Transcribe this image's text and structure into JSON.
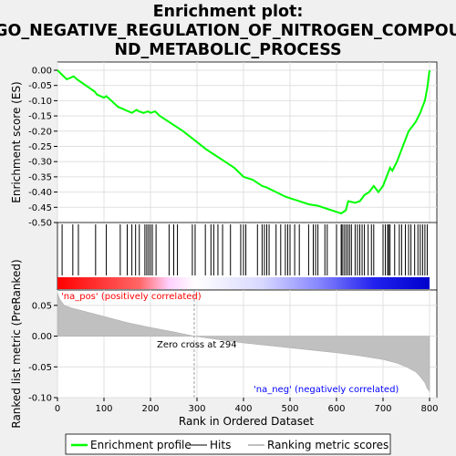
{
  "chart_data": [
    {
      "type": "line",
      "title_lines": [
        "Enrichment plot:",
        "GO_NEGATIVE_REGULATION_OF_NITROGEN_COMPOU",
        "ND_METABOLIC_PROCESS"
      ],
      "ylabel": "Enrichment score (ES)",
      "xlim": [
        0,
        800
      ],
      "ylim": [
        -0.5,
        0.0
      ],
      "yticks": [
        "0.00",
        "-0.05",
        "-0.10",
        "-0.15",
        "-0.20",
        "-0.25",
        "-0.30",
        "-0.35",
        "-0.40",
        "-0.45",
        "-0.50"
      ],
      "grid": true,
      "color": "#00ff00",
      "series": [
        {
          "name": "Enrichment profile",
          "x": [
            0,
            20,
            35,
            42,
            80,
            85,
            100,
            105,
            130,
            160,
            170,
            175,
            185,
            195,
            200,
            210,
            220,
            250,
            270,
            295,
            320,
            340,
            360,
            380,
            400,
            420,
            440,
            450,
            470,
            490,
            500,
            520,
            540,
            560,
            570,
            580,
            600,
            610,
            620,
            625,
            640,
            650,
            660,
            670,
            680,
            690,
            700,
            710,
            715,
            720,
            730,
            740,
            750,
            755,
            770,
            780,
            785,
            790,
            795,
            800
          ],
          "values": [
            -0.0,
            -0.03,
            -0.02,
            -0.03,
            -0.07,
            -0.08,
            -0.09,
            -0.085,
            -0.12,
            -0.14,
            -0.13,
            -0.135,
            -0.14,
            -0.135,
            -0.14,
            -0.135,
            -0.15,
            -0.18,
            -0.2,
            -0.23,
            -0.26,
            -0.28,
            -0.3,
            -0.32,
            -0.35,
            -0.36,
            -0.38,
            -0.385,
            -0.4,
            -0.415,
            -0.42,
            -0.43,
            -0.44,
            -0.445,
            -0.45,
            -0.455,
            -0.465,
            -0.47,
            -0.46,
            -0.43,
            -0.435,
            -0.43,
            -0.41,
            -0.4,
            -0.38,
            -0.4,
            -0.38,
            -0.34,
            -0.32,
            -0.33,
            -0.3,
            -0.26,
            -0.22,
            -0.2,
            -0.17,
            -0.14,
            -0.12,
            -0.1,
            -0.06,
            0.0
          ]
        }
      ]
    },
    {
      "type": "scatter",
      "name": "Hits",
      "x": [
        10,
        33,
        45,
        82,
        105,
        135,
        150,
        160,
        168,
        176,
        188,
        192,
        196,
        200,
        204,
        212,
        240,
        250,
        258,
        290,
        296,
        318,
        330,
        336,
        345,
        355,
        372,
        394,
        400,
        405,
        430,
        440,
        445,
        450,
        455,
        470,
        480,
        490,
        495,
        500,
        510,
        520,
        540,
        550,
        555,
        560,
        575,
        580,
        600,
        610,
        612,
        616,
        620,
        624,
        628,
        632,
        640,
        645,
        650,
        655,
        660,
        668,
        675,
        680,
        700,
        705,
        710,
        712,
        715,
        725,
        735,
        740,
        748,
        755,
        760,
        768,
        775,
        780,
        785,
        790,
        795
      ]
    },
    {
      "type": "area",
      "ylabel": "Ranked list metric (PreRanked)",
      "xlabel": "Rank in Ordered Dataset",
      "xlim": [
        0,
        800
      ],
      "ylim": [
        -0.1,
        0.075
      ],
      "yticks": [
        "0.05",
        "0.00",
        "-0.05",
        "-0.10"
      ],
      "xticks": [
        "0",
        "100",
        "200",
        "300",
        "400",
        "500",
        "600",
        "700",
        "800"
      ],
      "zero_cross": 294,
      "x": [
        0,
        5,
        15,
        30,
        50,
        80,
        100,
        150,
        200,
        250,
        294,
        350,
        400,
        450,
        500,
        550,
        600,
        650,
        700,
        730,
        750,
        770,
        780,
        790,
        795,
        800
      ],
      "values": [
        0.07,
        0.06,
        0.05,
        0.046,
        0.042,
        0.036,
        0.032,
        0.022,
        0.014,
        0.007,
        0.0,
        -0.006,
        -0.011,
        -0.015,
        -0.019,
        -0.023,
        -0.027,
        -0.032,
        -0.038,
        -0.044,
        -0.05,
        -0.058,
        -0.066,
        -0.076,
        -0.085,
        -0.09
      ]
    }
  ],
  "labels": {
    "pos": "'na_pos' (positively correlated)",
    "neg": "'na_neg' (negatively correlated)",
    "zero": "Zero cross at 294"
  },
  "legend": {
    "items": [
      "Enrichment profile",
      "Hits",
      "Ranking metric scores"
    ]
  },
  "colors": {
    "es_line": "#00ff00",
    "pos": "#ff0000",
    "neg": "#0000ff",
    "metric_fill": "#c0c0c0"
  }
}
